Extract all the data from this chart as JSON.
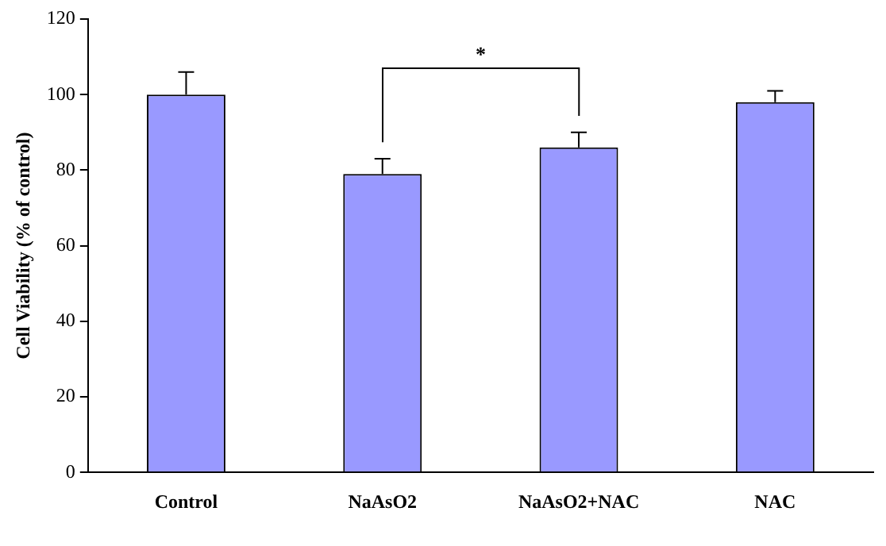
{
  "chart_data": {
    "type": "bar",
    "ylabel": "Cell Viability (% of control)",
    "categories": [
      "Control",
      "NaAsO2",
      "NaAsO2+NAC",
      "NAC"
    ],
    "values": [
      100,
      79,
      86,
      98
    ],
    "errors": [
      [
        100,
        106
      ],
      [
        79,
        83
      ],
      [
        86,
        90
      ],
      [
        98,
        101
      ]
    ],
    "color": "#9999ff",
    "ylim": [
      0,
      120
    ],
    "yticks": [
      0,
      20,
      40,
      60,
      80,
      100,
      120
    ],
    "grid": false,
    "legend": false,
    "annotations": [
      "*"
    ]
  }
}
